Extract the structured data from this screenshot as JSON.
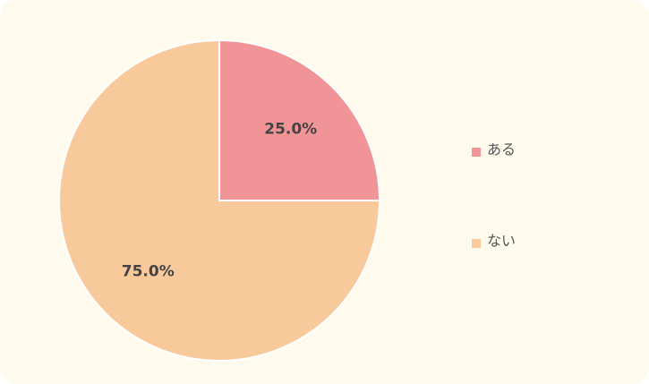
{
  "chart_data": {
    "type": "pie",
    "categories": [
      "ある",
      "ない"
    ],
    "values": [
      25,
      75
    ],
    "value_labels": [
      "25.0%",
      "75.0%"
    ],
    "colors": [
      "#f09497",
      "#f8c99b"
    ],
    "legend": "right"
  }
}
